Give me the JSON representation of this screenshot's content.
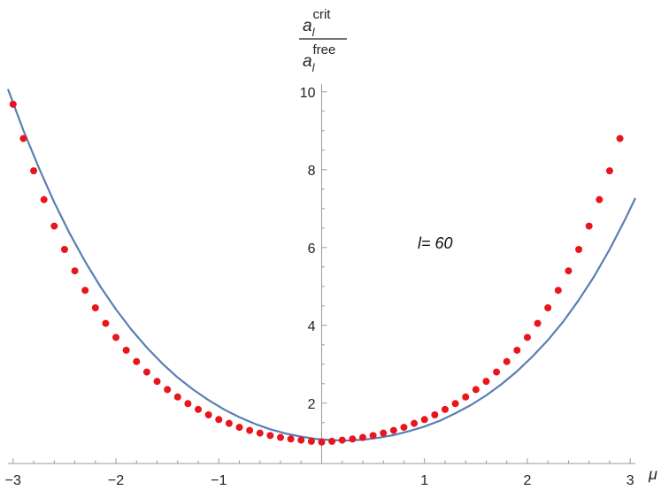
{
  "chart_data": {
    "type": "scatter",
    "xlim": [
      -3.05,
      3.05
    ],
    "ylim": [
      0.45,
      10.2
    ],
    "xticks": [
      {
        "value": -3,
        "label": "−3"
      },
      {
        "value": -2,
        "label": "−2"
      },
      {
        "value": -1,
        "label": "−1"
      },
      {
        "value": 1,
        "label": "1"
      },
      {
        "value": 2,
        "label": "2"
      },
      {
        "value": 3,
        "label": "3"
      }
    ],
    "yticks": [
      {
        "value": 2,
        "label": "2"
      },
      {
        "value": 4,
        "label": "4"
      },
      {
        "value": 6,
        "label": "6"
      },
      {
        "value": 8,
        "label": "8"
      },
      {
        "value": 10,
        "label": "10"
      }
    ],
    "xlabel": "μ",
    "ylabel": {
      "numerator_base": "a",
      "numerator_sub": "l",
      "numerator_sup": "crit",
      "denominator_base": "a",
      "denominator_sub": "l",
      "denominator_sup": "free"
    },
    "annotation": "l= 60",
    "grid": false,
    "colors": {
      "curve": "#5a7db5",
      "points": "#e8161c",
      "axis": "#999999"
    },
    "series": [
      {
        "kind": "curve",
        "x": [
          -3.05,
          -2.9,
          -2.75,
          -2.6,
          -2.45,
          -2.3,
          -2.15,
          -2.0,
          -1.85,
          -1.7,
          -1.55,
          -1.4,
          -1.25,
          -1.1,
          -0.95,
          -0.8,
          -0.65,
          -0.5,
          -0.35,
          -0.2,
          -0.05,
          0.1,
          0.25,
          0.4,
          0.55,
          0.7,
          0.85,
          1.0,
          1.15,
          1.3,
          1.45,
          1.6,
          1.75,
          1.9,
          2.05,
          2.2,
          2.35,
          2.5,
          2.65,
          2.8,
          2.95,
          3.05
        ],
        "y": [
          10.07,
          9.01,
          8.05,
          7.16,
          6.36,
          5.64,
          4.99,
          4.41,
          3.89,
          3.43,
          3.02,
          2.66,
          2.35,
          2.08,
          1.84,
          1.64,
          1.47,
          1.33,
          1.22,
          1.14,
          1.08,
          1.05,
          1.04,
          1.06,
          1.11,
          1.18,
          1.28,
          1.4,
          1.55,
          1.74,
          1.95,
          2.2,
          2.49,
          2.82,
          3.2,
          3.62,
          4.1,
          4.65,
          5.26,
          5.95,
          6.72,
          7.27
        ]
      },
      {
        "kind": "points",
        "x": [
          -3.0,
          -2.9,
          -2.8,
          -2.7,
          -2.6,
          -2.5,
          -2.4,
          -2.3,
          -2.2,
          -2.1,
          -2.0,
          -1.9,
          -1.8,
          -1.7,
          -1.6,
          -1.5,
          -1.4,
          -1.3,
          -1.2,
          -1.1,
          -1.0,
          -0.9,
          -0.8,
          -0.7,
          -0.6,
          -0.5,
          -0.4,
          -0.3,
          -0.2,
          -0.1,
          0.0,
          0.1,
          0.2,
          0.3,
          0.4,
          0.5,
          0.6,
          0.7,
          0.8,
          0.9,
          1.0,
          1.1,
          1.2,
          1.3,
          1.4,
          1.5,
          1.6,
          1.7,
          1.8,
          1.9,
          2.0,
          2.1,
          2.2,
          2.3,
          2.4,
          2.5,
          2.6,
          2.7,
          2.8,
          2.9
        ],
        "y": [
          9.68,
          8.8,
          7.97,
          7.23,
          6.55,
          5.95,
          5.4,
          4.9,
          4.45,
          4.05,
          3.69,
          3.36,
          3.07,
          2.8,
          2.56,
          2.35,
          2.16,
          1.99,
          1.84,
          1.7,
          1.58,
          1.48,
          1.38,
          1.3,
          1.23,
          1.17,
          1.12,
          1.08,
          1.05,
          1.02,
          1.0,
          1.02,
          1.05,
          1.08,
          1.12,
          1.17,
          1.23,
          1.3,
          1.38,
          1.48,
          1.58,
          1.7,
          1.84,
          1.99,
          2.16,
          2.35,
          2.56,
          2.8,
          3.07,
          3.36,
          3.69,
          4.05,
          4.45,
          4.9,
          5.4,
          5.95,
          6.55,
          7.23,
          7.97,
          8.8
        ]
      }
    ]
  }
}
